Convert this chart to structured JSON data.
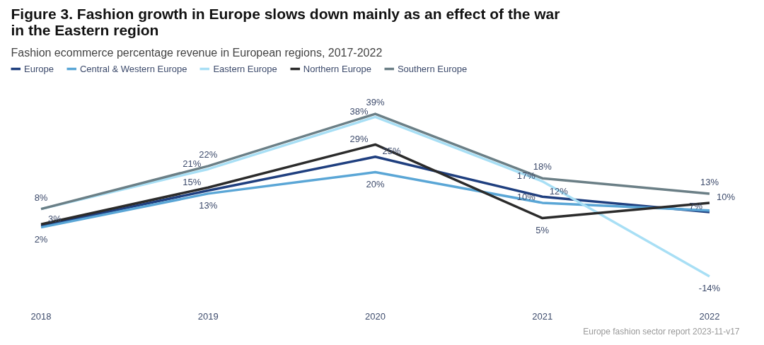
{
  "chart_data": {
    "type": "line",
    "title": "Figure 3. Fashion growth in Europe slows down mainly as an effect of the war in the Eastern region",
    "subtitle": "Fashion ecommerce percentage revenue in European regions, 2017-2022",
    "categories": [
      "2018",
      "2019",
      "2020",
      "2021",
      "2022"
    ],
    "series": [
      {
        "name": "Europe",
        "color": "#1f3f7f",
        "values": [
          2.5,
          14,
          25,
          12,
          7
        ],
        "value_labels": [
          null,
          null,
          "25%",
          "12%",
          "7%"
        ]
      },
      {
        "name": "Central & Western Europe",
        "color": "#5aa6d6",
        "values": [
          2,
          13,
          20,
          10,
          7.5
        ],
        "value_labels": [
          "2%",
          "13%",
          "20%",
          "10%",
          null
        ]
      },
      {
        "name": "Eastern Europe",
        "color": "#a8dff5",
        "values": [
          8,
          21,
          38,
          17,
          -14
        ],
        "value_labels": [
          null,
          "21%",
          "38%",
          "17%",
          "-14%"
        ]
      },
      {
        "name": "Northern Europe",
        "color": "#2b2b2b",
        "values": [
          3,
          15,
          29,
          5,
          10
        ],
        "value_labels": [
          "3%",
          "15%",
          "29%",
          "5%",
          "10%"
        ]
      },
      {
        "name": "Southern Europe",
        "color": "#6b7f86",
        "values": [
          8,
          22,
          39,
          18,
          13
        ],
        "value_labels": [
          "8%",
          "22%",
          "39%",
          "18%",
          "13%"
        ]
      }
    ],
    "legend": "top left",
    "grid": false,
    "tick_labels": "x",
    "marker": "none",
    "line_style": "solid",
    "annotations": [
      "Europe fashion sector report 2023-11-v17"
    ]
  }
}
